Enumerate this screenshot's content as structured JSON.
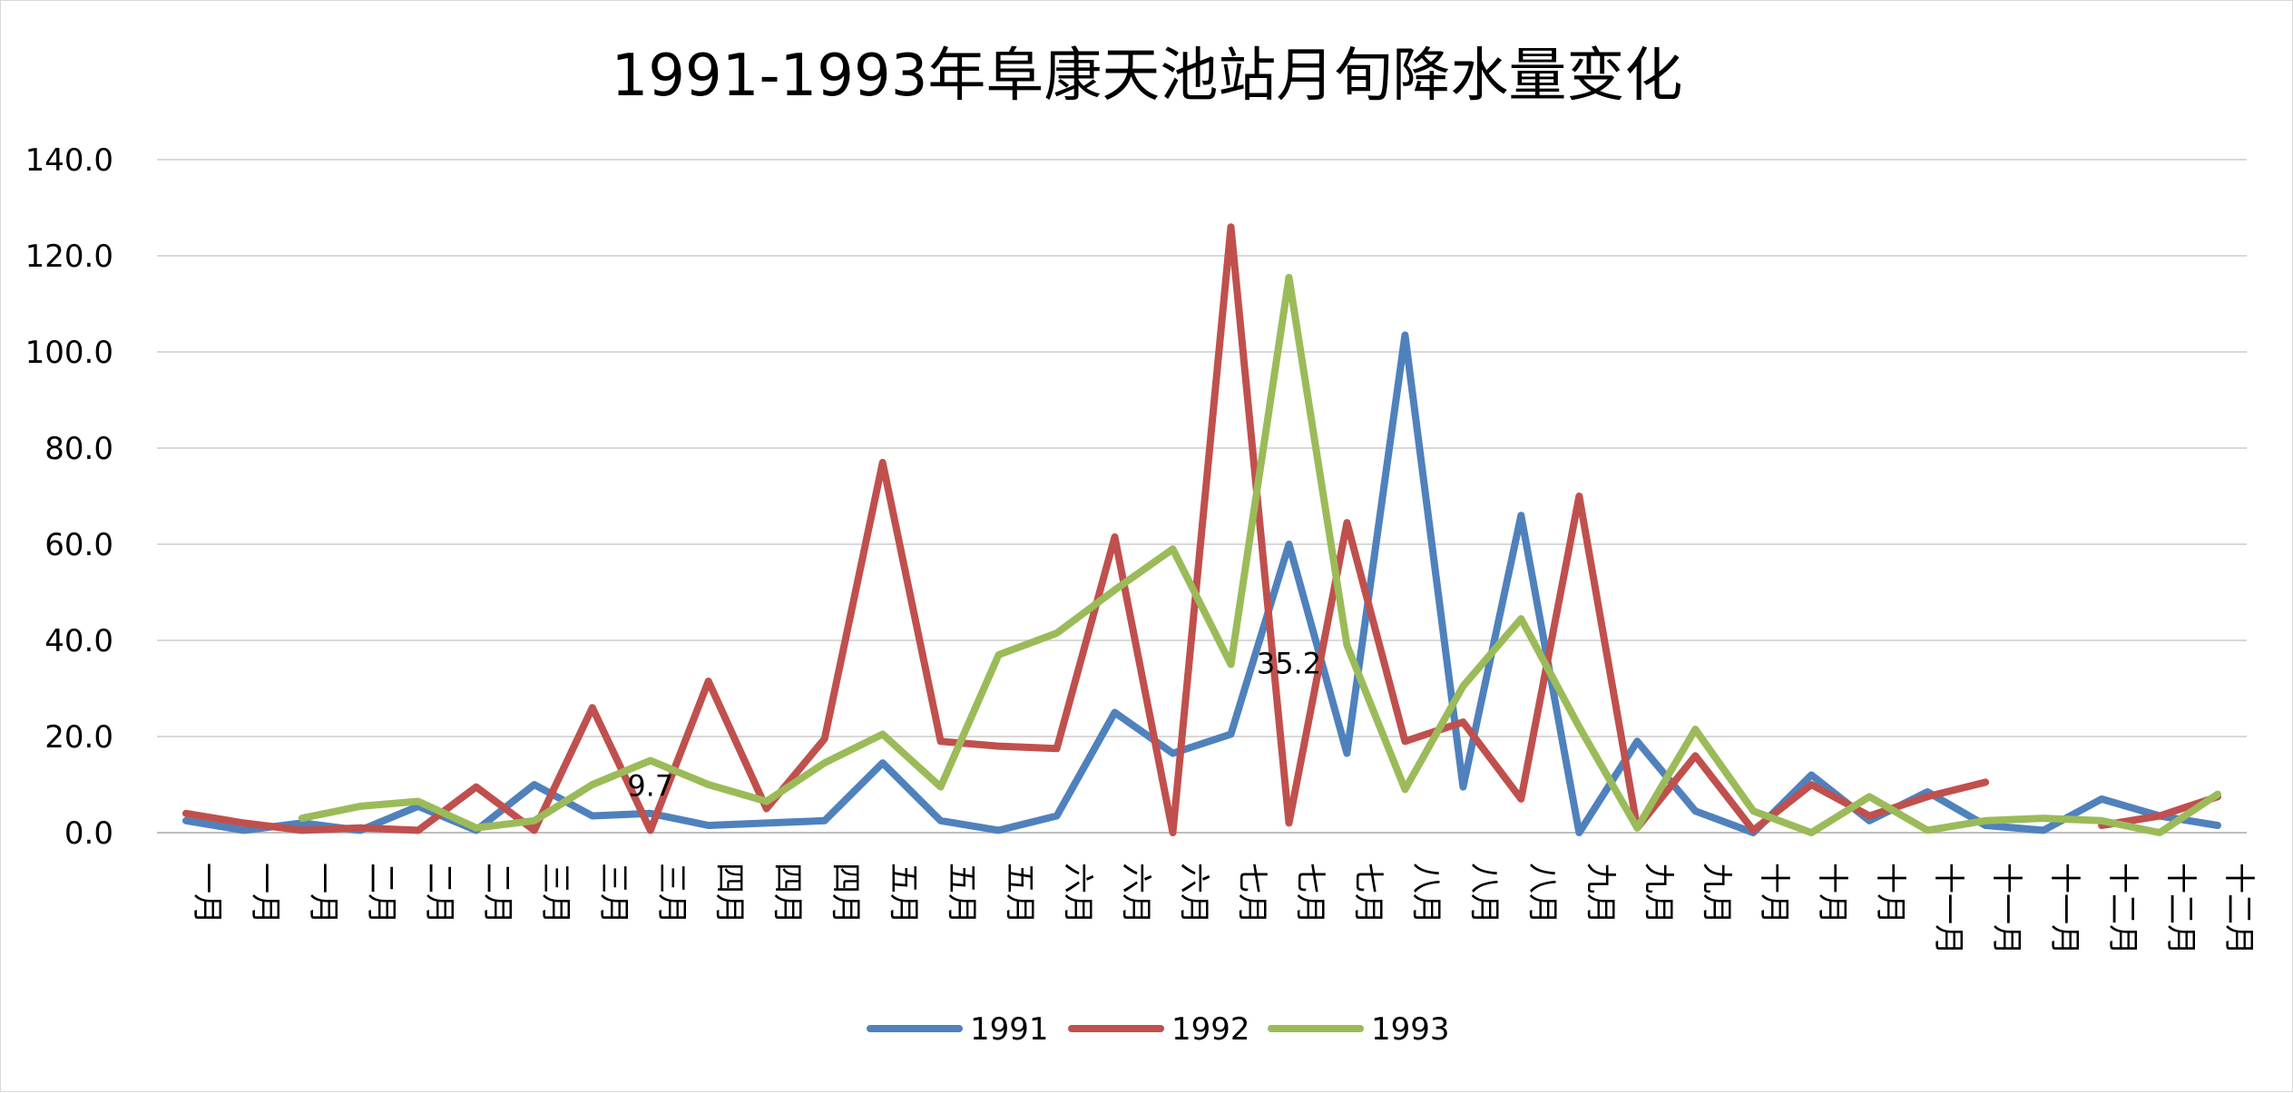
{
  "chart_data": {
    "type": "line",
    "title": "1991-1993年阜康天池站月旬降水量变化",
    "ylim": [
      0,
      140
    ],
    "yticks": [
      "0.0",
      "20.0",
      "40.0",
      "60.0",
      "80.0",
      "100.0",
      "120.0",
      "140.0"
    ],
    "grid": true,
    "legend": "bottom",
    "categories": [
      "一月",
      "一月",
      "一月",
      "二月",
      "二月",
      "二月",
      "三月",
      "三月",
      "三月",
      "四月",
      "四月",
      "四月",
      "五月",
      "五月",
      "五月",
      "六月",
      "六月",
      "六月",
      "七月",
      "七月",
      "七月",
      "八月",
      "八月",
      "八月",
      "九月",
      "九月",
      "九月",
      "十月",
      "十月",
      "十月",
      "十一月",
      "十一月",
      "十一月",
      "十二月",
      "十二月",
      "十二月"
    ],
    "series": [
      {
        "name": "1991",
        "color": "#4f81bd",
        "values": [
          2.5,
          0.5,
          2,
          0.5,
          5.5,
          0.5,
          10,
          3.5,
          4,
          1.5,
          2,
          2.5,
          14.5,
          2.5,
          0.5,
          3.5,
          25,
          16.5,
          20.5,
          60,
          16.5,
          103.5,
          9.5,
          66,
          0,
          19,
          4.5,
          0,
          12,
          2.5,
          8.5,
          1.5,
          0.5,
          7,
          3.5,
          1.5
        ]
      },
      {
        "name": "1992",
        "color": "#c0504d",
        "values": [
          4,
          2,
          0.5,
          1,
          0.5,
          9.5,
          0.5,
          26,
          0.5,
          31.5,
          5,
          19.5,
          77,
          19,
          18,
          17.5,
          61.5,
          0,
          126,
          2,
          64.5,
          19,
          23,
          7,
          70,
          1,
          16,
          0.5,
          10,
          3.5,
          7.5,
          10.5,
          null,
          1.5,
          3.5,
          7.5
        ]
      },
      {
        "name": "1993",
        "color": "#9bbb59",
        "values": [
          null,
          null,
          3,
          5.5,
          6.5,
          1,
          2.5,
          10,
          15,
          10,
          6.5,
          14.5,
          20.5,
          9.5,
          37,
          41.5,
          50.5,
          59,
          35,
          115.5,
          39,
          9,
          30.5,
          44.5,
          22,
          1,
          21.5,
          4.5,
          0,
          7.5,
          0.5,
          2.5,
          3,
          2.5,
          0,
          8
        ]
      }
    ],
    "annotations": [
      {
        "text": "9.7",
        "x_index": 8,
        "y": 9.7
      },
      {
        "text": "35.2",
        "x_index": 19,
        "y": 35.2
      }
    ]
  }
}
